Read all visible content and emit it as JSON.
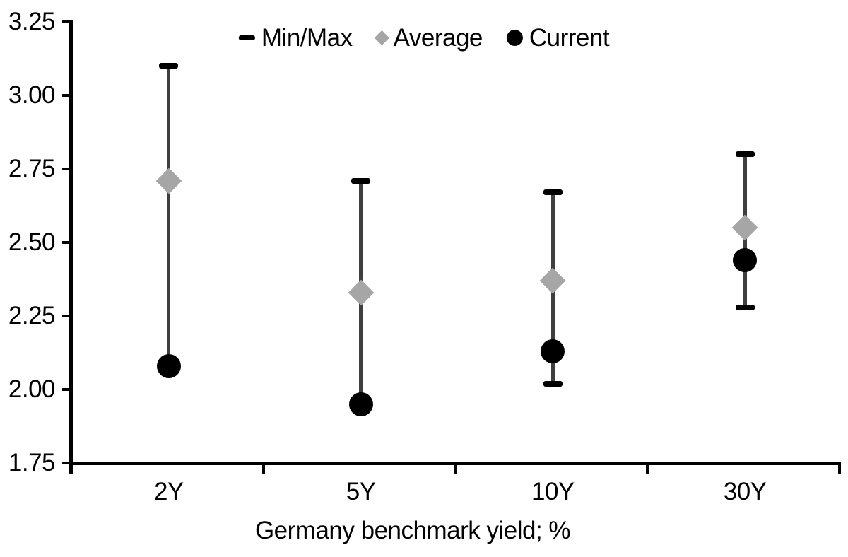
{
  "chart_data": {
    "type": "scatter",
    "title": "",
    "xlabel": "Germany benchmark yield; %",
    "ylabel": "",
    "categories": [
      "2Y",
      "5Y",
      "10Y",
      "30Y"
    ],
    "series": [
      {
        "name": "Min/Max",
        "marker": "dash",
        "min": [
          2.08,
          1.95,
          2.02,
          2.28
        ],
        "max": [
          3.1,
          2.71,
          2.67,
          2.8
        ]
      },
      {
        "name": "Average",
        "marker": "diamond",
        "values": [
          2.71,
          2.33,
          2.37,
          2.55
        ]
      },
      {
        "name": "Current",
        "marker": "circle",
        "values": [
          2.08,
          1.95,
          2.13,
          2.44
        ]
      }
    ],
    "ylim": [
      1.75,
      3.25
    ],
    "y_tick_step": 0.25,
    "y_tick_labels": [
      "3.25",
      "3.00",
      "2.75",
      "2.50",
      "2.25",
      "2.00",
      "1.75"
    ],
    "grid": false,
    "legend_position": "top"
  },
  "colors": {
    "minmax": "#000000",
    "average": "#A6A6A6",
    "current": "#000000",
    "error_line": "#3F3F3F",
    "axis": "#000000",
    "text": "#000000",
    "background": "#FFFFFF"
  }
}
